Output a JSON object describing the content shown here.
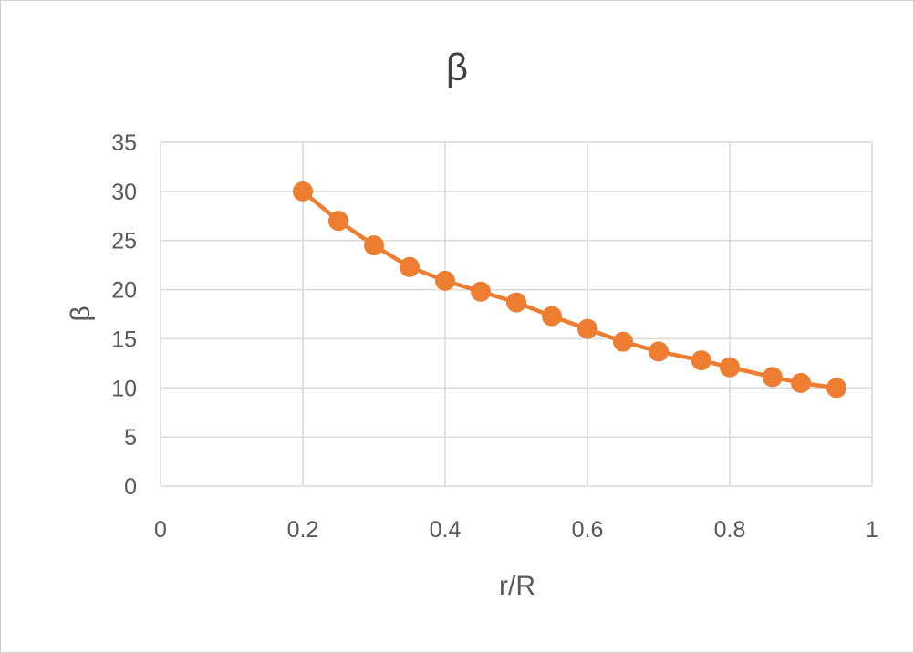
{
  "chart_data": {
    "type": "line",
    "title": "β",
    "xlabel": "r/R",
    "ylabel": "β",
    "xlim": [
      0,
      1
    ],
    "ylim": [
      0,
      35
    ],
    "x_ticks": [
      "0",
      "0.2",
      "0.4",
      "0.6",
      "0.8",
      "1"
    ],
    "y_ticks": [
      "0",
      "5",
      "10",
      "15",
      "20",
      "25",
      "30",
      "35"
    ],
    "grid": true,
    "legend": "none",
    "series": [
      {
        "color": "#ed7d31",
        "marker": "circle",
        "x": [
          0.2,
          0.25,
          0.3,
          0.35,
          0.4,
          0.45,
          0.5,
          0.55,
          0.6,
          0.65,
          0.7,
          0.76,
          0.8,
          0.86,
          0.9,
          0.95
        ],
        "y": [
          30.0,
          27.0,
          24.5,
          22.3,
          20.9,
          19.8,
          18.7,
          17.3,
          16.0,
          14.7,
          13.7,
          12.8,
          12.1,
          11.1,
          10.5,
          10.0
        ]
      }
    ]
  }
}
